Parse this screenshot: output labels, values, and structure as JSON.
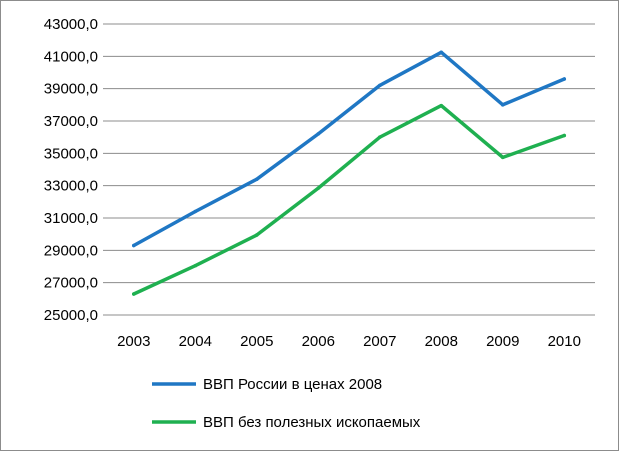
{
  "chart_data": {
    "type": "line",
    "title": "",
    "xlabel": "",
    "ylabel": "",
    "categories": [
      "2003",
      "2004",
      "2005",
      "2006",
      "2007",
      "2008",
      "2009",
      "2010"
    ],
    "ylim": [
      25000,
      43000
    ],
    "yticks": [
      "25000,0",
      "27000,0",
      "29000,0",
      "31000,0",
      "33000,0",
      "35000,0",
      "37000,0",
      "39000,0",
      "41000,0",
      "43000,0"
    ],
    "grid": "horizontal",
    "legend_position": "bottom",
    "series": [
      {
        "name": "ВВП России в ценах 2008",
        "color": "#1f77c4",
        "values": [
          29300,
          31400,
          33400,
          36200,
          39200,
          41250,
          38000,
          39600
        ]
      },
      {
        "name": "ВВП без полезных ископаемых",
        "color": "#1fb050",
        "values": [
          26300,
          28050,
          29950,
          32850,
          36000,
          37950,
          34750,
          36100
        ]
      }
    ]
  }
}
